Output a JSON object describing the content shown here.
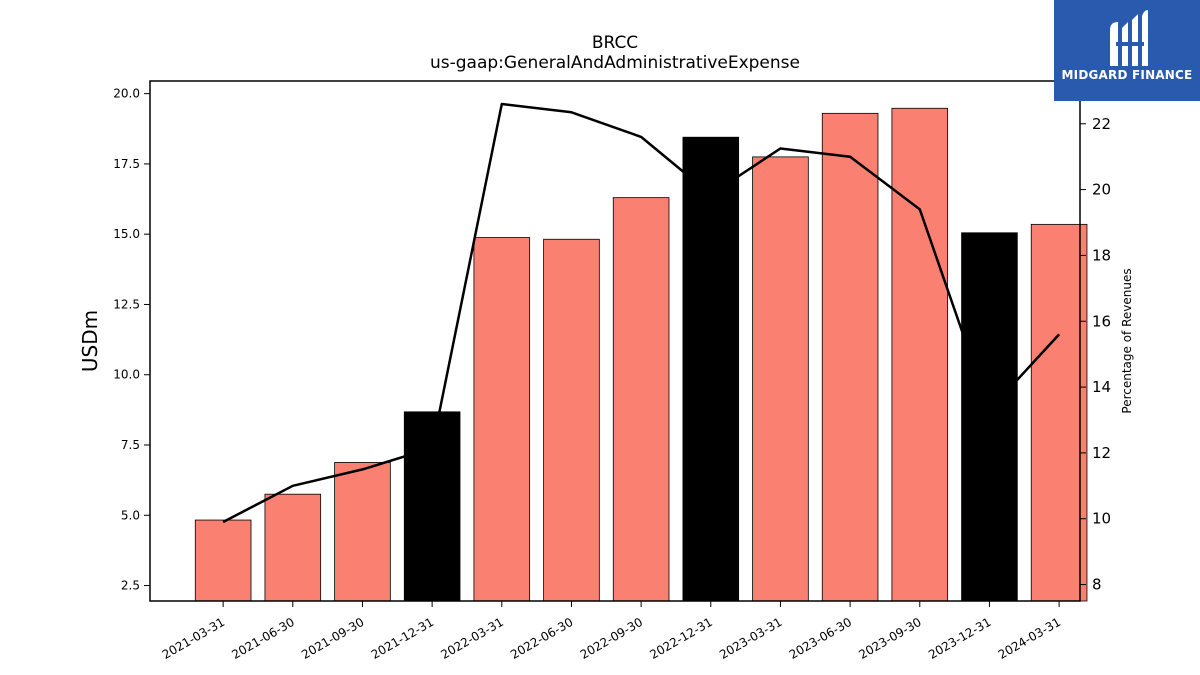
{
  "logo": {
    "text": "MIDGARD FINANCE",
    "icon": "midgard-logo-icon",
    "background": "#2a5aad"
  },
  "chart_data": {
    "type": "bar",
    "title": "BRCC",
    "subtitle": "us-gaap:GeneralAndAdministrativeExpense",
    "ylabel": "USDm",
    "y2label": "Percentage of Revenues",
    "ylim": [
      1.95,
      20.45
    ],
    "y2lim": [
      7.5,
      23.3
    ],
    "yticks": [
      "2.5",
      "5.0",
      "7.5",
      "10.0",
      "12.5",
      "15.0",
      "17.5",
      "20.0"
    ],
    "y2ticks": [
      "8",
      "10",
      "12",
      "14",
      "16",
      "18",
      "20",
      "22"
    ],
    "categories": [
      "2021-03-31",
      "2021-06-30",
      "2021-09-30",
      "2021-12-31",
      "2022-03-31",
      "2022-06-30",
      "2022-09-30",
      "2022-12-31",
      "2023-03-31",
      "2023-06-30",
      "2023-09-30",
      "2023-12-31",
      "2024-03-31"
    ],
    "series": [
      {
        "type": "bar",
        "axis": "left",
        "values": [
          4.83,
          5.75,
          6.88,
          8.68,
          14.88,
          14.82,
          16.3,
          18.45,
          17.75,
          19.3,
          19.48,
          15.05,
          15.35
        ],
        "colors": [
          "#fa8072",
          "#fa8072",
          "#fa8072",
          "#000000",
          "#fa8072",
          "#fa8072",
          "#fa8072",
          "#000000",
          "#fa8072",
          "#fa8072",
          "#fa8072",
          "#000000",
          "#fa8072"
        ]
      },
      {
        "type": "line",
        "axis": "right",
        "color": "#000000",
        "values": [
          9.9,
          11.0,
          11.5,
          12.15,
          22.6,
          22.35,
          21.6,
          19.85,
          21.25,
          21.0,
          19.4,
          13.3,
          15.6
        ]
      }
    ],
    "grid": false
  }
}
